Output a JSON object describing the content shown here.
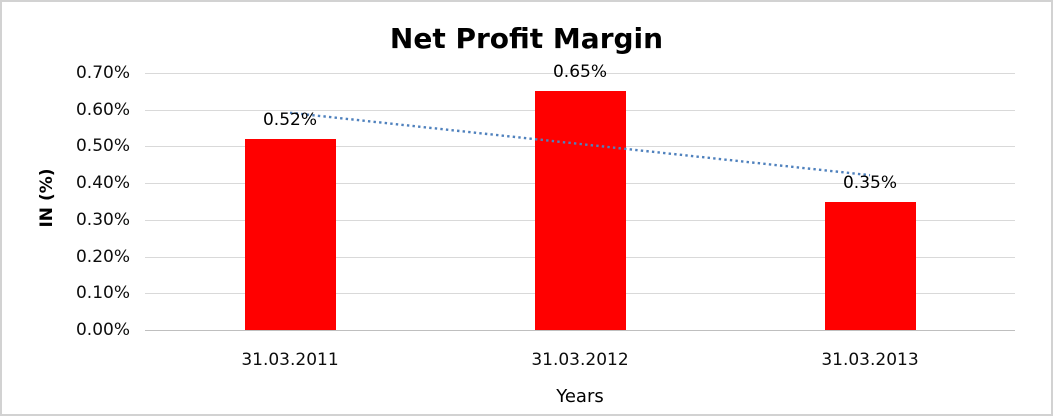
{
  "chart_data": {
    "type": "bar",
    "title": "Net Profit Margin",
    "xlabel": "Years",
    "ylabel": "IN (%)",
    "categories": [
      "31.03.2011",
      "31.03.2012",
      "31.03.2013"
    ],
    "values": [
      0.52,
      0.65,
      0.35
    ],
    "data_labels": [
      "0.52%",
      "0.65%",
      "0.35%"
    ],
    "y_ticks": [
      "0.70%",
      "0.60%",
      "0.50%",
      "0.40%",
      "0.30%",
      "0.20%",
      "0.10%",
      "0.00%"
    ],
    "ylim": [
      0,
      0.7
    ],
    "y_tick_step": 0.1,
    "grid": true,
    "legend": "none",
    "bar_color": "#ff0000",
    "gridline_color": "#d9d9d9",
    "axis_line_color": "#bfbfbf",
    "trendline": {
      "type": "linear",
      "style": "dotted",
      "color": "#4f81bd"
    }
  }
}
